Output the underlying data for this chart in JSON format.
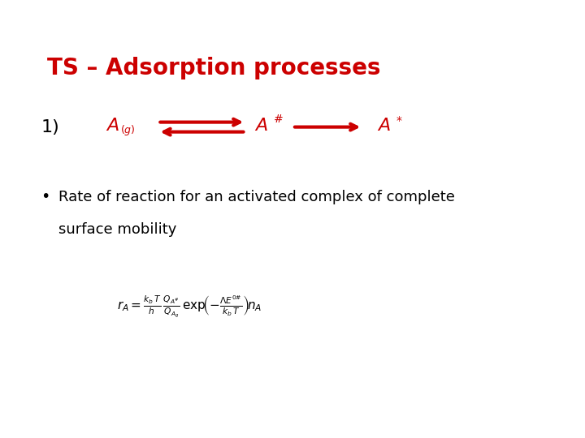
{
  "title": "TS – Adsorption processes",
  "title_color": "#CC0000",
  "title_fontsize": 20,
  "background_color": "#ffffff",
  "item_number": "1)",
  "item_number_color": "#000000",
  "item_number_fontsize": 16,
  "species_color": "#CC0000",
  "species_fontsize": 16,
  "bullet_text_line1": "Rate of reaction for an activated complex of complete",
  "bullet_text_line2": "surface mobility",
  "bullet_color": "#000000",
  "bullet_fontsize": 13,
  "formula_fontsize": 11,
  "formula_color": "#000000",
  "arrow_color": "#CC0000"
}
